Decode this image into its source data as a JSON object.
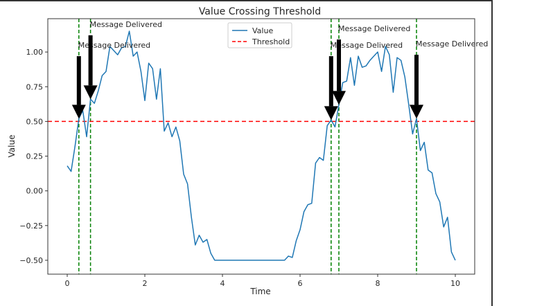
{
  "chart_data": {
    "type": "line",
    "title": "Value Crossing Threshold",
    "xlabel": "Time",
    "ylabel": "Value",
    "xlim": [
      -0.5,
      10.5
    ],
    "ylim": [
      -0.6,
      1.24
    ],
    "xticks": [
      0,
      2,
      4,
      6,
      8,
      10
    ],
    "xtick_labels": [
      "0",
      "2",
      "4",
      "6",
      "8",
      "10"
    ],
    "yticks": [
      -0.5,
      -0.25,
      0.0,
      0.25,
      0.5,
      0.75,
      1.0
    ],
    "ytick_labels": [
      "−0.50",
      "−0.25",
      "0.00",
      "0.25",
      "0.50",
      "0.75",
      "1.00"
    ],
    "grid": false,
    "legend": {
      "placement": "top-center",
      "entries": [
        {
          "label": "Value",
          "style": "solid",
          "color": "#1f77b4"
        },
        {
          "label": "Threshold",
          "style": "dashed",
          "color": "#ff0000"
        }
      ]
    },
    "series": [
      {
        "name": "Value",
        "color": "#1f77b4",
        "x": [
          0.0,
          0.1,
          0.2,
          0.3,
          0.4,
          0.5,
          0.6,
          0.7,
          0.8,
          0.9,
          1.0,
          1.1,
          1.2,
          1.3,
          1.4,
          1.5,
          1.6,
          1.7,
          1.8,
          1.9,
          2.0,
          2.1,
          2.2,
          2.3,
          2.4,
          2.5,
          2.6,
          2.7,
          2.8,
          2.9,
          3.0,
          3.1,
          3.2,
          3.3,
          3.4,
          3.5,
          3.6,
          3.7,
          3.8,
          3.9,
          4.0,
          4.1,
          4.2,
          4.3,
          4.4,
          4.5,
          4.6,
          4.7,
          4.8,
          4.9,
          5.0,
          5.1,
          5.2,
          5.3,
          5.4,
          5.5,
          5.6,
          5.7,
          5.8,
          5.9,
          6.0,
          6.1,
          6.2,
          6.3,
          6.4,
          6.5,
          6.6,
          6.7,
          6.8,
          6.9,
          7.0,
          7.1,
          7.2,
          7.3,
          7.4,
          7.5,
          7.6,
          7.7,
          7.8,
          7.9,
          8.0,
          8.1,
          8.2,
          8.3,
          8.4,
          8.5,
          8.6,
          8.7,
          8.8,
          8.9,
          9.0,
          9.1,
          9.2,
          9.3,
          9.4,
          9.5,
          9.6,
          9.7,
          9.8,
          9.9,
          10.0
        ],
        "y": [
          0.18,
          0.14,
          0.32,
          0.52,
          0.58,
          0.39,
          0.66,
          0.63,
          0.72,
          0.83,
          0.86,
          1.04,
          1.01,
          0.98,
          1.03,
          1.04,
          1.15,
          0.97,
          1.0,
          0.86,
          0.65,
          0.92,
          0.88,
          0.66,
          0.88,
          0.43,
          0.49,
          0.39,
          0.46,
          0.36,
          0.12,
          0.05,
          -0.19,
          -0.39,
          -0.32,
          -0.37,
          -0.35,
          -0.45,
          -0.5,
          -0.5,
          -0.5,
          -0.5,
          -0.5,
          -0.5,
          -0.5,
          -0.5,
          -0.5,
          -0.5,
          -0.5,
          -0.5,
          -0.5,
          -0.5,
          -0.5,
          -0.5,
          -0.5,
          -0.5,
          -0.5,
          -0.47,
          -0.48,
          -0.36,
          -0.28,
          -0.15,
          -0.1,
          -0.09,
          0.2,
          0.24,
          0.22,
          0.47,
          0.51,
          0.46,
          0.62,
          0.78,
          0.79,
          0.96,
          0.76,
          0.97,
          0.89,
          0.9,
          0.94,
          0.97,
          1.0,
          0.86,
          1.04,
          0.98,
          0.71,
          0.96,
          0.94,
          0.82,
          0.62,
          0.41,
          0.52,
          0.29,
          0.35,
          0.15,
          0.13,
          -0.02,
          -0.08,
          -0.26,
          -0.19,
          -0.44,
          -0.5
        ]
      }
    ],
    "threshold": {
      "name": "Threshold",
      "value": 0.5,
      "color": "#ff0000",
      "style": "dashed"
    },
    "crossings": {
      "color": "#008000",
      "style": "dashed",
      "times": [
        0.3,
        0.6,
        6.8,
        7.0,
        9.0
      ]
    },
    "annotations": [
      {
        "text": "Message Delivered",
        "x": 0.3,
        "y": 0.52,
        "text_y": 1.03
      },
      {
        "text": "Message Delivered",
        "x": 0.6,
        "y": 0.66,
        "text_y": 1.18
      },
      {
        "text": "Message Delivered",
        "x": 6.8,
        "y": 0.51,
        "text_y": 1.03
      },
      {
        "text": "Message Delivered",
        "x": 7.0,
        "y": 0.62,
        "text_y": 1.15
      },
      {
        "text": "Message Delivered",
        "x": 9.0,
        "y": 0.52,
        "text_y": 1.04
      }
    ]
  }
}
